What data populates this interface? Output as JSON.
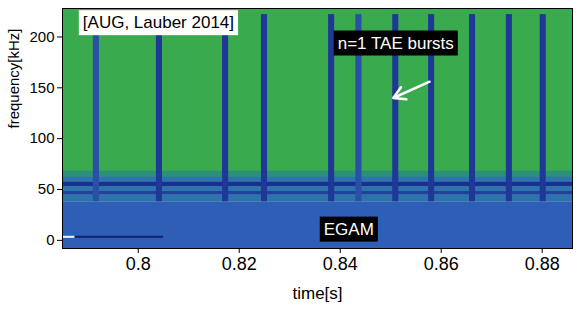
{
  "chart_data": {
    "type": "spectrogram",
    "x_label": "time[s]",
    "y_label": "frequency[kHz]",
    "xlim": [
      0.785,
      0.886
    ],
    "xticks": [
      0.8,
      0.82,
      0.84,
      0.86,
      0.88
    ],
    "ylim": [
      -8,
      228
    ],
    "yticks": [
      0,
      50,
      100,
      150,
      200
    ],
    "regions": [
      {
        "x0": 0.785,
        "x1": 0.886,
        "y0": -8,
        "y1": 38,
        "color": "#2d5fb6"
      },
      {
        "x0": 0.785,
        "x1": 0.886,
        "y0": 38,
        "y1": 64,
        "color": "#2f73ad"
      },
      {
        "x0": 0.785,
        "x1": 0.886,
        "y0": 64,
        "y1": 228,
        "color": "#3aaa4e"
      },
      {
        "x0": 0.785,
        "x1": 0.886,
        "y0": 62,
        "y1": 68,
        "color": "#2b8f7a"
      },
      {
        "x0": 0.785,
        "x1": 0.886,
        "y0": 53,
        "y1": 57,
        "color": "#1b2f8f"
      },
      {
        "x0": 0.785,
        "x1": 0.886,
        "y0": 45,
        "y1": 48,
        "color": "#23409a"
      },
      {
        "x0": 0.785,
        "x1": 0.7875,
        "y0": 2,
        "y1": 4,
        "color": "#eef2fa"
      },
      {
        "x0": 0.7875,
        "x1": 0.805,
        "y0": 2,
        "y1": 4,
        "color": "#16206e"
      },
      {
        "x0": 0.7911,
        "x1": 0.7923,
        "y0": 38,
        "y1": 222,
        "color": "#2a4fa6"
      },
      {
        "x0": 0.8036,
        "x1": 0.8048,
        "y0": 38,
        "y1": 222,
        "color": "#1f3797"
      },
      {
        "x0": 0.8167,
        "x1": 0.8179,
        "y0": 38,
        "y1": 222,
        "color": "#1f3797"
      },
      {
        "x0": 0.8244,
        "x1": 0.8256,
        "y0": 38,
        "y1": 222,
        "color": "#1f3797"
      },
      {
        "x0": 0.8377,
        "x1": 0.8389,
        "y0": 38,
        "y1": 222,
        "color": "#1f3797"
      },
      {
        "x0": 0.8431,
        "x1": 0.8443,
        "y0": 38,
        "y1": 222,
        "color": "#2a4fa6"
      },
      {
        "x0": 0.8504,
        "x1": 0.8516,
        "y0": 38,
        "y1": 222,
        "color": "#1f3797"
      },
      {
        "x0": 0.8575,
        "x1": 0.8587,
        "y0": 38,
        "y1": 222,
        "color": "#1f3797"
      },
      {
        "x0": 0.8656,
        "x1": 0.8668,
        "y0": 38,
        "y1": 222,
        "color": "#1f3797"
      },
      {
        "x0": 0.8729,
        "x1": 0.8741,
        "y0": 38,
        "y1": 222,
        "color": "#1f3797"
      },
      {
        "x0": 0.8796,
        "x1": 0.8808,
        "y0": 38,
        "y1": 222,
        "color": "#1f3797"
      }
    ],
    "annotations": [
      {
        "text": "[AUG, Lauber 2014]",
        "x": 0.804,
        "y": 214,
        "color": "black"
      },
      {
        "text": "n=1 TAE bursts",
        "x": 0.851,
        "y": 194,
        "color": "white",
        "arrow": {
          "from": [
            0.8577,
            156
          ],
          "to": [
            0.8505,
            140
          ]
        }
      },
      {
        "text": "EGAM",
        "x": 0.8417,
        "y": 11,
        "color": "white"
      }
    ]
  }
}
